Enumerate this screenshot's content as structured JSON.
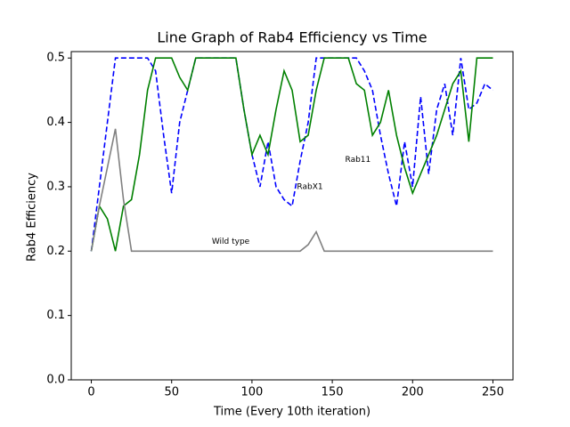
{
  "chart_data": {
    "type": "line",
    "title": "Line Graph of Rab4 Efficiency vs Time",
    "x_label": "Time (Every 10th iteration)",
    "y_label": "Rab4 Efficiency",
    "x": [
      0,
      5,
      10,
      15,
      20,
      25,
      30,
      35,
      40,
      45,
      50,
      55,
      60,
      65,
      70,
      75,
      80,
      85,
      90,
      95,
      100,
      105,
      110,
      115,
      120,
      125,
      130,
      135,
      140,
      145,
      150,
      155,
      160,
      165,
      170,
      175,
      180,
      185,
      190,
      195,
      200,
      205,
      210,
      215,
      220,
      225,
      230,
      235,
      240,
      245,
      250
    ],
    "series": [
      {
        "color": "#0000ff",
        "dash": true,
        "values": [
          0.2,
          0.3,
          0.4,
          0.5,
          0.5,
          0.5,
          0.5,
          0.5,
          0.48,
          0.38,
          0.29,
          0.4,
          0.45,
          0.5,
          0.5,
          0.5,
          0.5,
          0.5,
          0.5,
          0.42,
          0.35,
          0.3,
          0.37,
          0.3,
          0.28,
          0.27,
          0.34,
          0.4,
          0.5,
          0.5,
          0.5,
          0.5,
          0.5,
          0.5,
          0.48,
          0.45,
          0.38,
          0.32,
          0.27,
          0.37,
          0.3,
          0.44,
          0.32,
          0.42,
          0.46,
          0.38,
          0.5,
          0.42,
          0.43,
          0.46,
          0.45
        ]
      },
      {
        "color": "#008000",
        "dash": false,
        "values": [
          0.2,
          0.27,
          0.25,
          0.2,
          0.27,
          0.28,
          0.35,
          0.45,
          0.5,
          0.5,
          0.5,
          0.47,
          0.45,
          0.5,
          0.5,
          0.5,
          0.5,
          0.5,
          0.5,
          0.42,
          0.35,
          0.38,
          0.35,
          0.42,
          0.48,
          0.45,
          0.37,
          0.38,
          0.45,
          0.5,
          0.5,
          0.5,
          0.5,
          0.46,
          0.45,
          0.38,
          0.4,
          0.45,
          0.38,
          0.33,
          0.29,
          0.32,
          0.35,
          0.38,
          0.42,
          0.46,
          0.48,
          0.37,
          0.5,
          0.5,
          0.5
        ]
      },
      {
        "color": "#808080",
        "dash": false,
        "values": [
          0.2,
          0.27,
          0.33,
          0.39,
          0.28,
          0.2,
          0.2,
          0.2,
          0.2,
          0.2,
          0.2,
          0.2,
          0.2,
          0.2,
          0.2,
          0.2,
          0.2,
          0.2,
          0.2,
          0.2,
          0.2,
          0.2,
          0.2,
          0.2,
          0.2,
          0.2,
          0.2,
          0.21,
          0.23,
          0.2,
          0.2,
          0.2,
          0.2,
          0.2,
          0.2,
          0.2,
          0.2,
          0.2,
          0.2,
          0.2,
          0.2,
          0.2,
          0.2,
          0.2,
          0.2,
          0.2,
          0.2,
          0.2,
          0.2,
          0.2,
          0.2
        ]
      }
    ],
    "annotations": [
      {
        "text": "RabX1",
        "x": 128,
        "y": 0.3,
        "color": "#1f5fbf"
      },
      {
        "text": "Rab11",
        "x": 158,
        "y": 0.342,
        "color": "#7ab648"
      },
      {
        "text": "Wild type",
        "x": 75,
        "y": 0.215,
        "color": "#777777"
      }
    ],
    "xlim": [
      -12.5,
      262.5
    ],
    "ylim": [
      0,
      0.51
    ],
    "xticks": [
      0,
      50,
      100,
      150,
      200,
      250
    ],
    "yticks": [
      {
        "value": 0,
        "label": "0.0"
      },
      0.1,
      0.2,
      0.3,
      0.4,
      0.5
    ]
  }
}
